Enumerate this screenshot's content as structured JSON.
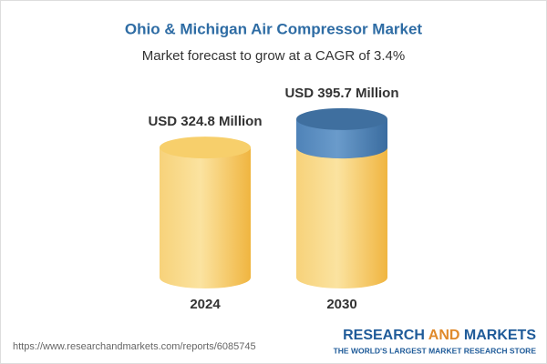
{
  "chart_data": {
    "type": "cylinder",
    "title": "Ohio & Michigan Air Compressor Market",
    "subtitle": "Market forecast to grow at a CAGR of 3.4%",
    "categories": [
      "2024",
      "2030"
    ],
    "values": [
      324.8,
      395.7
    ],
    "value_labels": [
      "USD 324.8 Million",
      "USD 395.7 Million"
    ],
    "color": "#f5c14f",
    "growth_color": "#4a7db3",
    "source": "https://www.researchandmarkets.com/reports/6085745",
    "brand": [
      "RESEARCH",
      "AND",
      "MARKETS"
    ],
    "tagline": "THE WORLD'S LARGEST MARKET RESEARCH STORE"
  }
}
